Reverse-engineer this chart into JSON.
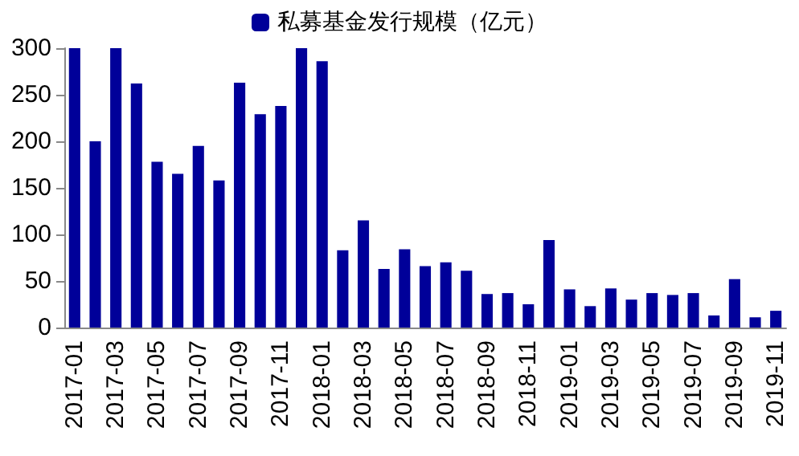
{
  "chart_data": {
    "type": "bar",
    "categories": [
      "2017-01",
      null,
      "2017-03",
      null,
      "2017-05",
      null,
      "2017-07",
      null,
      "2017-09",
      null,
      "2017-11",
      null,
      "2018-01",
      null,
      "2018-03",
      null,
      "2018-05",
      null,
      "2018-07",
      null,
      "2018-09",
      null,
      "2018-11",
      null,
      "2019-01",
      null,
      "2019-03",
      null,
      "2019-05",
      null,
      "2019-07",
      null,
      "2019-09",
      null,
      "2019-11"
    ],
    "series": [
      {
        "name": "私募基金发行规模（亿元）",
        "color": "#000099",
        "values": [
          300,
          200,
          300,
          262,
          178,
          165,
          195,
          158,
          263,
          229,
          238,
          300,
          286,
          83,
          115,
          63,
          84,
          66,
          70,
          61,
          36,
          37,
          25,
          94,
          41,
          23,
          42,
          30,
          37,
          35,
          37,
          13,
          52,
          11,
          18
        ]
      }
    ],
    "ylim": [
      0,
      300
    ],
    "yticks": [
      0,
      50,
      100,
      150,
      200,
      250,
      300
    ],
    "grid": false,
    "legend": "top"
  }
}
